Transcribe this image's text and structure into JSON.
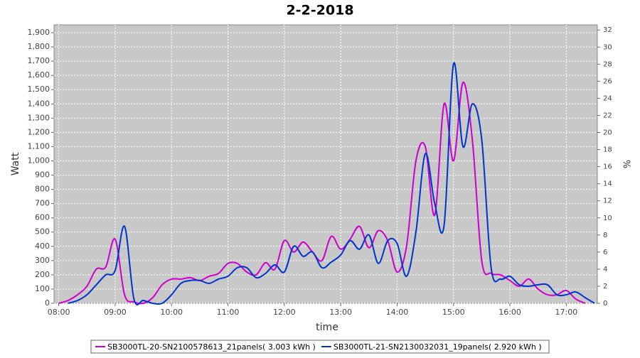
{
  "chart_data": {
    "type": "line",
    "title": "2-2-2018",
    "x_label": "time",
    "y_label": "Watt",
    "y2_label": "%",
    "x": [
      "08:00",
      "08:10",
      "08:20",
      "08:30",
      "08:40",
      "08:50",
      "09:00",
      "09:10",
      "09:20",
      "09:30",
      "09:40",
      "09:50",
      "10:00",
      "10:10",
      "10:20",
      "10:30",
      "10:40",
      "10:50",
      "11:00",
      "11:10",
      "11:20",
      "11:30",
      "11:40",
      "11:50",
      "12:00",
      "12:10",
      "12:20",
      "12:30",
      "12:40",
      "12:50",
      "13:00",
      "13:10",
      "13:20",
      "13:30",
      "13:40",
      "13:50",
      "14:00",
      "14:10",
      "14:20",
      "14:30",
      "14:40",
      "14:50",
      "15:00",
      "15:10",
      "15:20",
      "15:30",
      "15:40",
      "15:50",
      "16:00",
      "16:10",
      "16:20",
      "16:30",
      "16:40",
      "16:50",
      "17:00",
      "17:10",
      "17:20",
      "17:30"
    ],
    "xlim": [
      "07:55",
      "17:33"
    ],
    "xticks": [
      "08:00",
      "09:00",
      "10:00",
      "11:00",
      "12:00",
      "13:00",
      "14:00",
      "15:00",
      "16:00",
      "17:00"
    ],
    "ylim": [
      0,
      1955
    ],
    "yticks": [
      0,
      100,
      200,
      300,
      400,
      500,
      600,
      700,
      800,
      900,
      {
        "value": 1000,
        "label": "1,000"
      },
      {
        "value": 1100,
        "label": "1,100"
      },
      {
        "value": 1200,
        "label": "1,200"
      },
      {
        "value": 1300,
        "label": "1,300"
      },
      {
        "value": 1400,
        "label": "1,400"
      },
      {
        "value": 1500,
        "label": "1,500"
      },
      {
        "value": 1600,
        "label": "1,600"
      },
      {
        "value": 1700,
        "label": "1,700"
      },
      {
        "value": 1800,
        "label": "1,800"
      },
      {
        "value": 1900,
        "label": "1,900"
      }
    ],
    "y2lim": [
      0,
      32.6
    ],
    "y2ticks": [
      0,
      2,
      4,
      6,
      8,
      10,
      12,
      14,
      16,
      18,
      20,
      22,
      24,
      26,
      28,
      30,
      32
    ],
    "grid": true,
    "legend": "bottom",
    "series": [
      {
        "name": "SB3000TL-20-SN2100578613_21panels( 3.003 kWh )",
        "color": "#cc00cc",
        "values": [
          0,
          20,
          60,
          120,
          240,
          255,
          450,
          60,
          10,
          0,
          40,
          130,
          170,
          170,
          180,
          160,
          190,
          210,
          280,
          280,
          220,
          200,
          285,
          240,
          440,
          360,
          430,
          360,
          300,
          470,
          380,
          450,
          540,
          390,
          510,
          440,
          220,
          400,
          1000,
          1100,
          620,
          1400,
          1000,
          1550,
          1150,
          300,
          210,
          200,
          160,
          120,
          170,
          100,
          60,
          60,
          90,
          30,
          0,
          null
        ]
      },
      {
        "name": "SB3000TL-21-SN2130032031_19panels( 2.920 kWh )",
        "color": "#0033cc",
        "values": [
          null,
          0,
          20,
          60,
          130,
          200,
          230,
          540,
          30,
          20,
          0,
          0,
          60,
          140,
          160,
          160,
          140,
          170,
          190,
          250,
          250,
          180,
          210,
          270,
          220,
          400,
          330,
          360,
          250,
          290,
          340,
          440,
          380,
          480,
          280,
          440,
          420,
          190,
          500,
          1050,
          700,
          550,
          1680,
          1100,
          1400,
          1150,
          250,
          170,
          190,
          130,
          120,
          130,
          130,
          60,
          60,
          80,
          40,
          0
        ]
      }
    ]
  }
}
